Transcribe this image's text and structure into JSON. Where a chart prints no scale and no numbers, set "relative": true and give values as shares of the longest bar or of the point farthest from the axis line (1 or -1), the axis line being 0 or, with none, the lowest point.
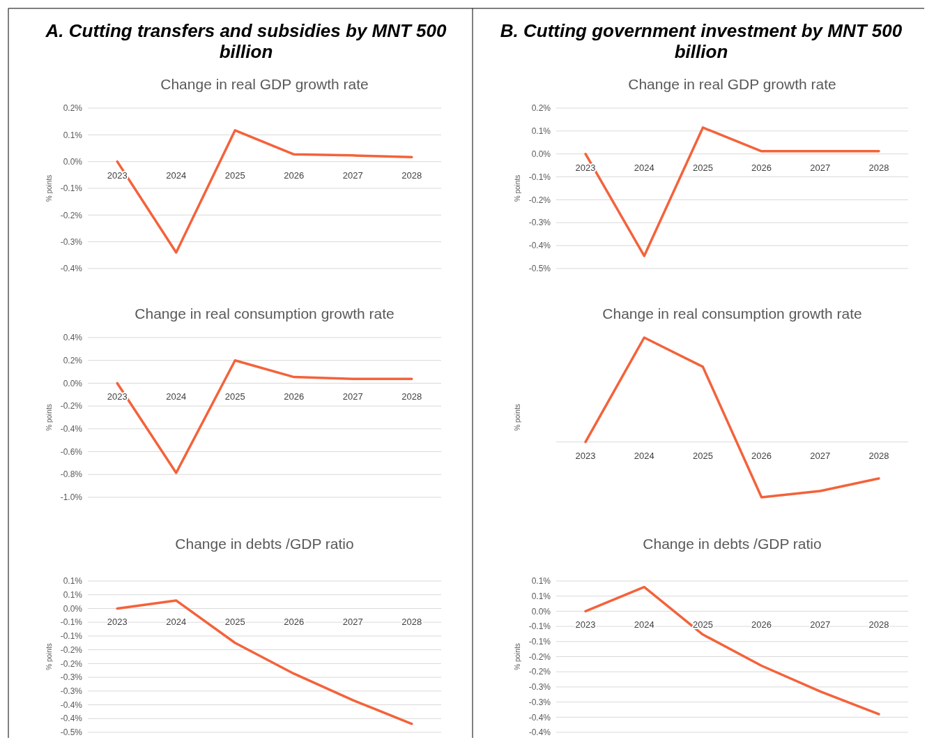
{
  "chart_data": [
    {
      "type": "line",
      "annotations": [
        "A. Cutting transfers and subsidies by MNT 500 billion"
      ],
      "title": "Change in real GDP growth rate",
      "ylabel": "% points",
      "categories": [
        "2023",
        "2024",
        "2025",
        "2026",
        "2027",
        "2028"
      ],
      "series": [
        {
          "color": "#f4623a",
          "values": [
            0,
            -0.34,
            0.117,
            0.027,
            0.023,
            0.017
          ]
        }
      ],
      "ylim": [
        -0.4,
        0.2
      ],
      "yticks": [
        {
          "value": -0.4,
          "label": "-0.4%"
        },
        {
          "value": -0.3,
          "label": "-0.3%"
        },
        {
          "value": -0.2,
          "label": "-0.2%"
        },
        {
          "value": -0.1,
          "label": "-0.1%"
        },
        {
          "value": 0,
          "label": "0.0%"
        },
        {
          "value": 0.1,
          "label": "0.1%"
        },
        {
          "value": 0.2,
          "label": "0.2%"
        }
      ],
      "grid": "y"
    },
    {
      "type": "line",
      "annotations": [
        "B. Cutting government investment by MNT 500 billion"
      ],
      "title": "Change in real GDP growth rate",
      "ylabel": "% points",
      "categories": [
        "2023",
        "2024",
        "2025",
        "2026",
        "2027",
        "2028"
      ],
      "series": [
        {
          "color": "#f4623a",
          "values": [
            0,
            -0.445,
            0.115,
            0.012,
            0.012,
            0.012
          ]
        }
      ],
      "ylim": [
        -0.5,
        0.2
      ],
      "yticks": [
        {
          "value": -0.5,
          "label": "-0.5%"
        },
        {
          "value": -0.4,
          "label": "-0.4%"
        },
        {
          "value": -0.3,
          "label": "-0.3%"
        },
        {
          "value": -0.2,
          "label": "-0.2%"
        },
        {
          "value": -0.1,
          "label": "-0.1%"
        },
        {
          "value": 0,
          "label": "0.0%"
        },
        {
          "value": 0.1,
          "label": "0.1%"
        },
        {
          "value": 0.2,
          "label": "0.2%"
        }
      ],
      "grid": "y"
    },
    {
      "type": "line",
      "title": "Change in real consumption growth rate",
      "ylabel": "% points",
      "categories": [
        "2023",
        "2024",
        "2025",
        "2026",
        "2027",
        "2028"
      ],
      "series": [
        {
          "color": "#f4623a",
          "values": [
            0,
            -0.786,
            0.2,
            0.054,
            0.038,
            0.038
          ]
        }
      ],
      "ylim": [
        -1.0,
        0.4
      ],
      "yticks": [
        {
          "value": -1.0,
          "label": "-1.0%"
        },
        {
          "value": -0.8,
          "label": "-0.8%"
        },
        {
          "value": -0.6,
          "label": "-0.6%"
        },
        {
          "value": -0.4,
          "label": "-0.4%"
        },
        {
          "value": -0.2,
          "label": "-0.2%"
        },
        {
          "value": 0,
          "label": "0.0%"
        },
        {
          "value": 0.2,
          "label": "0.2%"
        },
        {
          "value": 0.4,
          "label": "0.4%"
        }
      ],
      "grid": "y"
    },
    {
      "type": "line",
      "title": "Change in real consumption growth rate",
      "ylabel": "% points",
      "categories": [
        "2023",
        "2024",
        "2025",
        "2026",
        "2027",
        "2028"
      ],
      "relative": true,
      "series": [
        {
          "color": "#f4623a",
          "values": [
            0,
            1,
            0.72,
            -0.53,
            -0.47,
            -0.35
          ]
        }
      ]
    },
    {
      "type": "line",
      "title": "Change in debts /GDP ratio",
      "ylabel": "% points",
      "categories": [
        "2023",
        "2024",
        "2025",
        "2026",
        "2027",
        "2028"
      ],
      "series": [
        {
          "color": "#f4623a",
          "values": [
            0,
            0.029,
            -0.125,
            -0.237,
            -0.333,
            -0.419
          ]
        }
      ],
      "ylim": [
        -0.45,
        0.1
      ],
      "yticks": [
        {
          "value": -0.45,
          "label": "-0.5%"
        },
        {
          "value": -0.4,
          "label": "-0.4%"
        },
        {
          "value": -0.35,
          "label": "-0.4%"
        },
        {
          "value": -0.3,
          "label": "-0.3%"
        },
        {
          "value": -0.25,
          "label": "-0.3%"
        },
        {
          "value": -0.2,
          "label": "-0.2%"
        },
        {
          "value": -0.15,
          "label": "-0.2%"
        },
        {
          "value": -0.1,
          "label": "-0.1%"
        },
        {
          "value": -0.05,
          "label": "-0.1%"
        },
        {
          "value": 0,
          "label": "0.0%"
        },
        {
          "value": 0.05,
          "label": "0.1%"
        },
        {
          "value": 0.1,
          "label": "0.1%"
        }
      ],
      "grid": "y"
    },
    {
      "type": "line",
      "title": "Change in debts /GDP ratio",
      "ylabel": "% points",
      "categories": [
        "2023",
        "2024",
        "2025",
        "2026",
        "2027",
        "2028"
      ],
      "series": [
        {
          "color": "#f4623a",
          "values": [
            0,
            0.08,
            -0.077,
            -0.18,
            -0.265,
            -0.34
          ]
        }
      ],
      "ylim": [
        -0.4,
        0.1
      ],
      "yticks": [
        {
          "value": -0.4,
          "label": "-0.4%"
        },
        {
          "value": -0.35,
          "label": "-0.4%"
        },
        {
          "value": -0.3,
          "label": "-0.3%"
        },
        {
          "value": -0.25,
          "label": "-0.3%"
        },
        {
          "value": -0.2,
          "label": "-0.2%"
        },
        {
          "value": -0.15,
          "label": "-0.2%"
        },
        {
          "value": -0.1,
          "label": "-0.1%"
        },
        {
          "value": -0.05,
          "label": "-0.1%"
        },
        {
          "value": 0,
          "label": "0.0%"
        },
        {
          "value": 0.05,
          "label": "0.1%"
        },
        {
          "value": 0.1,
          "label": "0.1%"
        }
      ],
      "grid": "y"
    }
  ]
}
